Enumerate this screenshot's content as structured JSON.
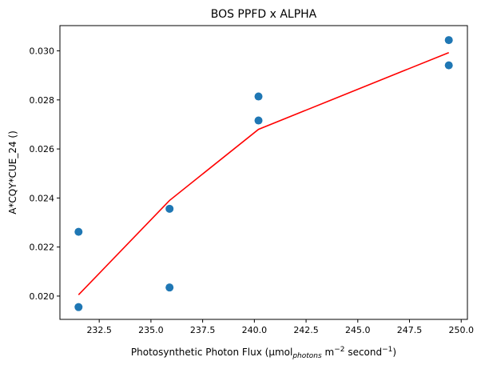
{
  "chart_data": {
    "type": "scatter",
    "title": "BOS PPFD x ALPHA",
    "xlabel": {
      "prefix": "Photosynthetic Photon Flux (µmol",
      "sub": "photons",
      "mid": " m",
      "sup1": "−2",
      "mid2": " second",
      "sup2": "−1",
      "suffix": ")"
    },
    "ylabel": "A*CQY*CUE_24 ()",
    "xlim": [
      230.6,
      250.3
    ],
    "ylim": [
      0.01905,
      0.03103
    ],
    "xticks": [
      232.5,
      235.0,
      237.5,
      240.0,
      242.5,
      245.0,
      247.5,
      250.0
    ],
    "xtick_labels": [
      "232.5",
      "235.0",
      "237.5",
      "240.0",
      "242.5",
      "245.0",
      "247.5",
      "250.0"
    ],
    "yticks": [
      0.02,
      0.022,
      0.024,
      0.026,
      0.028,
      0.03
    ],
    "ytick_labels": [
      "0.020",
      "0.022",
      "0.024",
      "0.026",
      "0.028",
      "0.030"
    ],
    "grid": false,
    "series": [
      {
        "kind": "scatter",
        "color": "#1f77b4",
        "points": [
          {
            "x": 231.5,
            "y": 0.02262
          },
          {
            "x": 231.5,
            "y": 0.01955
          },
          {
            "x": 235.9,
            "y": 0.02356
          },
          {
            "x": 235.9,
            "y": 0.02035
          },
          {
            "x": 240.2,
            "y": 0.02814
          },
          {
            "x": 240.2,
            "y": 0.02716
          },
          {
            "x": 249.4,
            "y": 0.03044
          },
          {
            "x": 249.4,
            "y": 0.02941
          }
        ]
      },
      {
        "kind": "line",
        "color": "#ff0000",
        "points": [
          {
            "x": 231.5,
            "y": 0.02005
          },
          {
            "x": 235.9,
            "y": 0.0239
          },
          {
            "x": 240.2,
            "y": 0.0268
          },
          {
            "x": 249.4,
            "y": 0.02993
          }
        ]
      }
    ]
  }
}
